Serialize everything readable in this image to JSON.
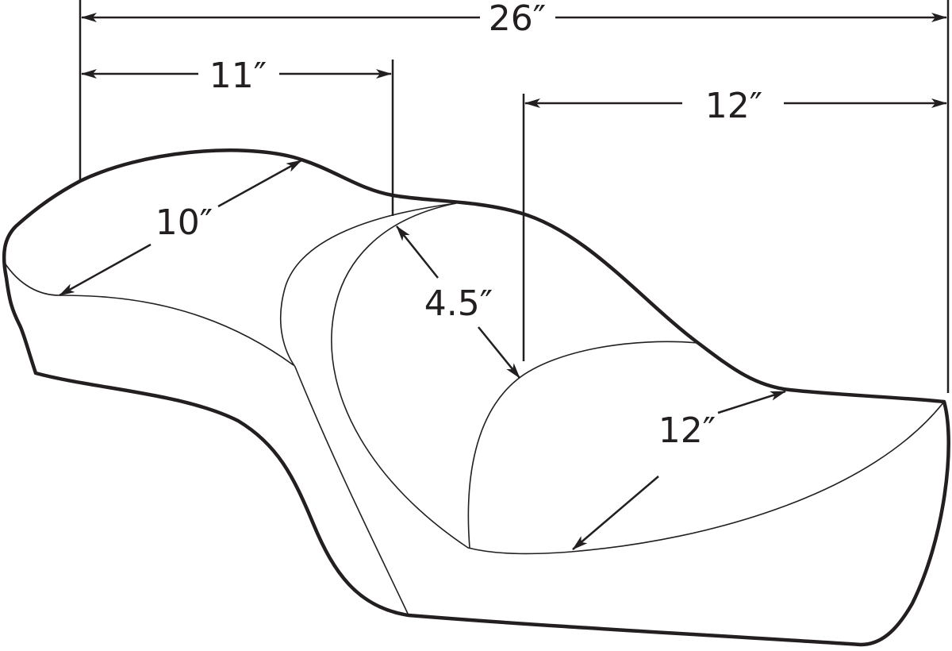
{
  "diagram": {
    "subject": "seat",
    "line_color": "#231f20",
    "dimensions": {
      "overall_length": "26″",
      "front_seat_length": "11″",
      "passenger_length": "12″",
      "front_width": "10″",
      "depth": "4.5″",
      "rear_width": "12″"
    }
  }
}
